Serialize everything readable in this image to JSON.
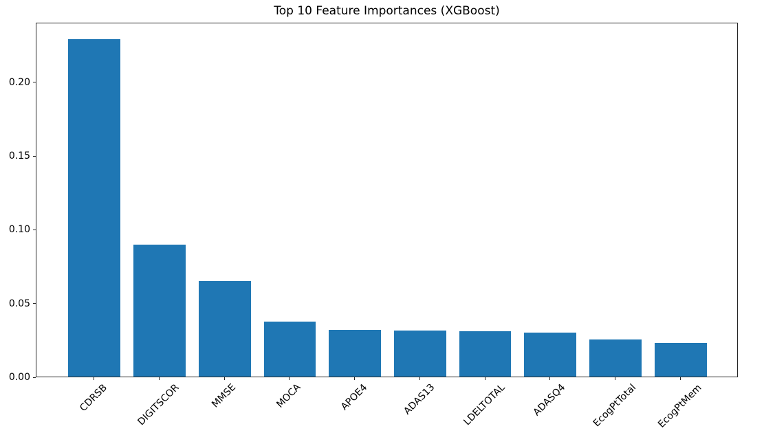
{
  "chart_data": {
    "type": "bar",
    "title": "Top 10 Feature Importances (XGBoost)",
    "categories": [
      "CDRSB",
      "DIGITSCOR",
      "MMSE",
      "MOCA",
      "APOE4",
      "ADAS13",
      "LDELTOTAL",
      "ADASQ4",
      "EcogPtTotal",
      "EcogPtMem"
    ],
    "values": [
      0.229,
      0.0897,
      0.0648,
      0.0373,
      0.0317,
      0.0311,
      0.0306,
      0.0298,
      0.0252,
      0.0228
    ],
    "xlabel": "",
    "ylabel": "",
    "ylim": [
      0,
      0.2405
    ],
    "yticks": [
      0,
      0.05,
      0.1,
      0.15,
      0.2
    ],
    "ytick_labels": [
      "0.00",
      "0.05",
      "0.10",
      "0.15",
      "0.20"
    ],
    "xtick_rotation_deg": 45,
    "bar_width_frac": 0.8,
    "x_margin_frac": 0.05,
    "grid": false,
    "legend": null,
    "bar_color": "#1f77b4",
    "axis_color": "#262626",
    "text_color": "#000000"
  }
}
